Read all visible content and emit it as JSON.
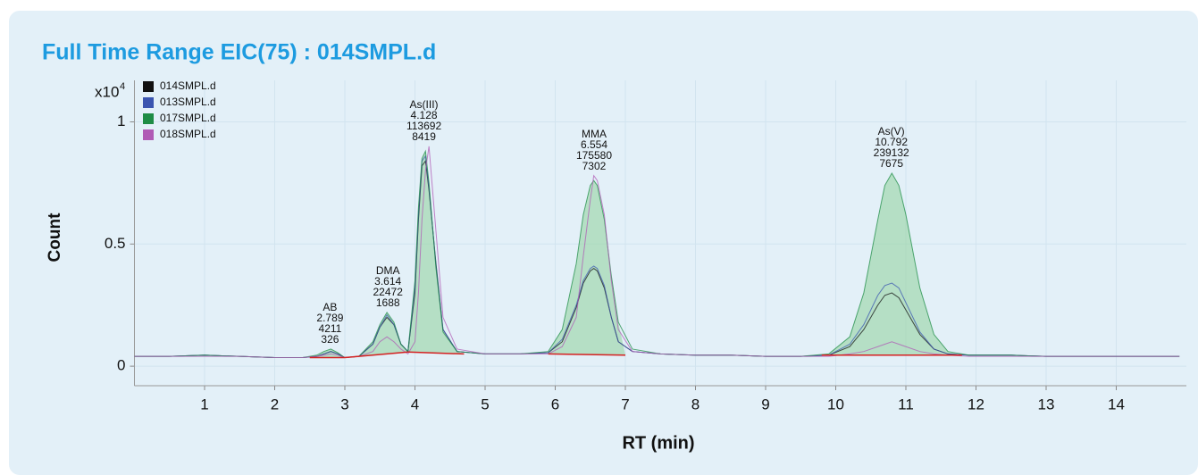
{
  "chart_data": {
    "type": "line",
    "title": "Full Time Range EIC(75) : 014SMPL.d",
    "xlabel": "RT (min)",
    "ylabel": "Count",
    "y_multiplier": "x10",
    "y_multiplier_exponent": "4",
    "xlim": [
      0,
      15
    ],
    "ylim": [
      -0.08,
      1.17
    ],
    "xticks": [
      1,
      2,
      3,
      4,
      5,
      6,
      7,
      8,
      9,
      10,
      11,
      12,
      13,
      14
    ],
    "yticks": [
      0,
      0.5,
      1
    ],
    "grid": true,
    "legend": "top-left",
    "x": [
      0,
      0.5,
      1,
      1.5,
      2,
      2.4,
      2.6,
      2.7,
      2.8,
      2.9,
      3.0,
      3.2,
      3.4,
      3.5,
      3.6,
      3.7,
      3.8,
      3.9,
      4.0,
      4.05,
      4.1,
      4.15,
      4.2,
      4.3,
      4.4,
      4.6,
      5,
      5.5,
      5.9,
      6.1,
      6.3,
      6.4,
      6.5,
      6.55,
      6.6,
      6.7,
      6.8,
      6.9,
      7.1,
      7.5,
      8,
      8.5,
      9,
      9.5,
      9.9,
      10.2,
      10.4,
      10.6,
      10.7,
      10.8,
      10.9,
      11.0,
      11.2,
      11.4,
      11.6,
      11.9,
      12.5,
      13,
      13.5,
      14,
      14.5,
      14.9
    ],
    "series": [
      {
        "name": "014SMPL.d",
        "color": "#111111",
        "values": [
          0.04,
          0.04,
          0.045,
          0.04,
          0.035,
          0.035,
          0.04,
          0.05,
          0.06,
          0.05,
          0.035,
          0.04,
          0.09,
          0.16,
          0.2,
          0.17,
          0.09,
          0.06,
          0.3,
          0.6,
          0.82,
          0.84,
          0.72,
          0.42,
          0.15,
          0.06,
          0.05,
          0.05,
          0.055,
          0.1,
          0.24,
          0.34,
          0.39,
          0.4,
          0.39,
          0.32,
          0.2,
          0.1,
          0.06,
          0.05,
          0.045,
          0.045,
          0.04,
          0.04,
          0.045,
          0.08,
          0.15,
          0.25,
          0.29,
          0.3,
          0.28,
          0.23,
          0.13,
          0.07,
          0.05,
          0.045,
          0.045,
          0.04,
          0.04,
          0.04,
          0.04,
          0.04
        ]
      },
      {
        "name": "013SMPL.d",
        "color": "#3b55b0",
        "values": [
          0.04,
          0.04,
          0.045,
          0.04,
          0.035,
          0.035,
          0.04,
          0.05,
          0.06,
          0.05,
          0.035,
          0.04,
          0.09,
          0.16,
          0.21,
          0.17,
          0.09,
          0.06,
          0.32,
          0.62,
          0.84,
          0.86,
          0.73,
          0.41,
          0.15,
          0.06,
          0.05,
          0.05,
          0.055,
          0.11,
          0.25,
          0.35,
          0.4,
          0.41,
          0.4,
          0.33,
          0.2,
          0.1,
          0.06,
          0.05,
          0.045,
          0.045,
          0.04,
          0.04,
          0.045,
          0.09,
          0.17,
          0.29,
          0.33,
          0.34,
          0.32,
          0.26,
          0.14,
          0.07,
          0.05,
          0.045,
          0.045,
          0.04,
          0.04,
          0.04,
          0.04,
          0.04
        ]
      },
      {
        "name": "017SMPL.d",
        "color": "#1e8c45",
        "values": [
          0.04,
          0.04,
          0.045,
          0.04,
          0.035,
          0.035,
          0.045,
          0.06,
          0.07,
          0.055,
          0.035,
          0.04,
          0.1,
          0.17,
          0.22,
          0.18,
          0.09,
          0.06,
          0.35,
          0.65,
          0.85,
          0.88,
          0.75,
          0.4,
          0.14,
          0.06,
          0.05,
          0.05,
          0.06,
          0.15,
          0.42,
          0.62,
          0.74,
          0.76,
          0.74,
          0.6,
          0.37,
          0.18,
          0.07,
          0.05,
          0.045,
          0.045,
          0.04,
          0.04,
          0.05,
          0.12,
          0.3,
          0.6,
          0.74,
          0.79,
          0.74,
          0.62,
          0.32,
          0.13,
          0.06,
          0.045,
          0.045,
          0.04,
          0.04,
          0.04,
          0.04,
          0.04
        ]
      },
      {
        "name": "018SMPL.d",
        "color": "#b05bb5",
        "values": [
          0.04,
          0.04,
          0.04,
          0.04,
          0.035,
          0.035,
          0.04,
          0.045,
          0.05,
          0.045,
          0.035,
          0.04,
          0.06,
          0.1,
          0.12,
          0.1,
          0.07,
          0.05,
          0.1,
          0.3,
          0.6,
          0.8,
          0.9,
          0.55,
          0.2,
          0.07,
          0.05,
          0.05,
          0.05,
          0.08,
          0.2,
          0.45,
          0.68,
          0.78,
          0.76,
          0.62,
          0.35,
          0.15,
          0.06,
          0.05,
          0.045,
          0.045,
          0.04,
          0.04,
          0.04,
          0.05,
          0.06,
          0.08,
          0.09,
          0.1,
          0.09,
          0.08,
          0.06,
          0.05,
          0.045,
          0.04,
          0.04,
          0.04,
          0.04,
          0.04,
          0.04,
          0.04
        ]
      }
    ],
    "peaks": [
      {
        "name": "AB",
        "rt": 2.789,
        "area": 4211,
        "height": 326
      },
      {
        "name": "DMA",
        "rt": 3.614,
        "area": 22472,
        "height": 1688
      },
      {
        "name": "As(III)",
        "rt": 4.128,
        "area": 113692,
        "height": 8419
      },
      {
        "name": "MMA",
        "rt": 6.554,
        "area": 175580,
        "height": 7302
      },
      {
        "name": "As(V)",
        "rt": 10.792,
        "area": 239132,
        "height": 7675
      }
    ],
    "baseline_color": "#d42020",
    "baselines": [
      {
        "x": [
          2.5,
          3.0
        ],
        "y": [
          0.035,
          0.035
        ]
      },
      {
        "x": [
          3.0,
          3.9
        ],
        "y": [
          0.035,
          0.058
        ]
      },
      {
        "x": [
          3.9,
          4.7
        ],
        "y": [
          0.058,
          0.05
        ]
      },
      {
        "x": [
          5.9,
          7.0
        ],
        "y": [
          0.05,
          0.045
        ]
      },
      {
        "x": [
          9.8,
          11.8
        ],
        "y": [
          0.045,
          0.045
        ]
      }
    ]
  }
}
